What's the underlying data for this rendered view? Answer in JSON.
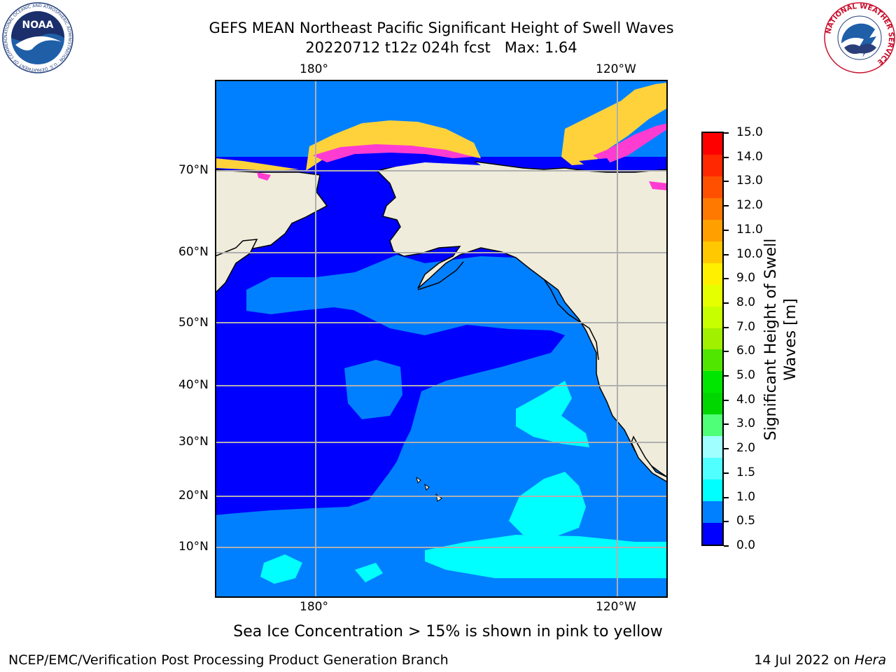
{
  "title": {
    "line1": "GEFS MEAN Northeast Pacific Significant Height of Swell Waves",
    "line2": "20220712 t12z 024h fcst   Max: 1.64"
  },
  "map": {
    "lon_labels_top": [
      "180°",
      "120°W"
    ],
    "lon_labels_bottom": [
      "180°",
      "120°W"
    ],
    "lat_labels": [
      "70°N",
      "60°N",
      "50°N",
      "40°N",
      "30°N",
      "20°N",
      "10°N"
    ],
    "colors": {
      "land": "#efecdb",
      "ocean_low": "#0000ff",
      "ocean_mid": "#0080ff",
      "ocean_high": "#00ffff",
      "sea_ice_pink": "#ff3cd2",
      "sea_ice_yellow": "#ffd23c",
      "grid": "#b0b0b0"
    }
  },
  "colorbar": {
    "label": "Significant Height of Swell\nWaves [m]",
    "ticks": [
      "15.0",
      "14.0",
      "13.0",
      "12.0",
      "11.0",
      "10.0",
      "9.0",
      "8.0",
      "7.0",
      "6.0",
      "5.0",
      "4.0",
      "3.0",
      "2.0",
      "1.5",
      "1.0",
      "0.5",
      "0.0"
    ],
    "colors_top_to_bottom": [
      "#ff0000",
      "#ff2800",
      "#ff5000",
      "#ff7800",
      "#ffa000",
      "#ffc800",
      "#fff000",
      "#e6ff00",
      "#c8ff00",
      "#a0f000",
      "#50e600",
      "#00e600",
      "#00d700",
      "#50ff78",
      "#a0ffff",
      "#50ffff",
      "#00ffff",
      "#0080ff",
      "#0000ff"
    ]
  },
  "caption": "Sea Ice Concentration > 15% is shown in pink to yellow",
  "footer": {
    "left": "NCEP/EMC/Verification Post Processing Product Generation Branch",
    "right_date": "14 Jul 2022 on ",
    "right_host": "Hera"
  },
  "logos": {
    "noaa_text": "NOAA",
    "noaa_ring_text": "NATIONAL OCEANIC AND ATMOSPHERIC ADMINISTRATION · U.S. DEPARTMENT OF COMMERCE",
    "nws_ring_text": "NATIONAL WEATHER SERVICE"
  }
}
